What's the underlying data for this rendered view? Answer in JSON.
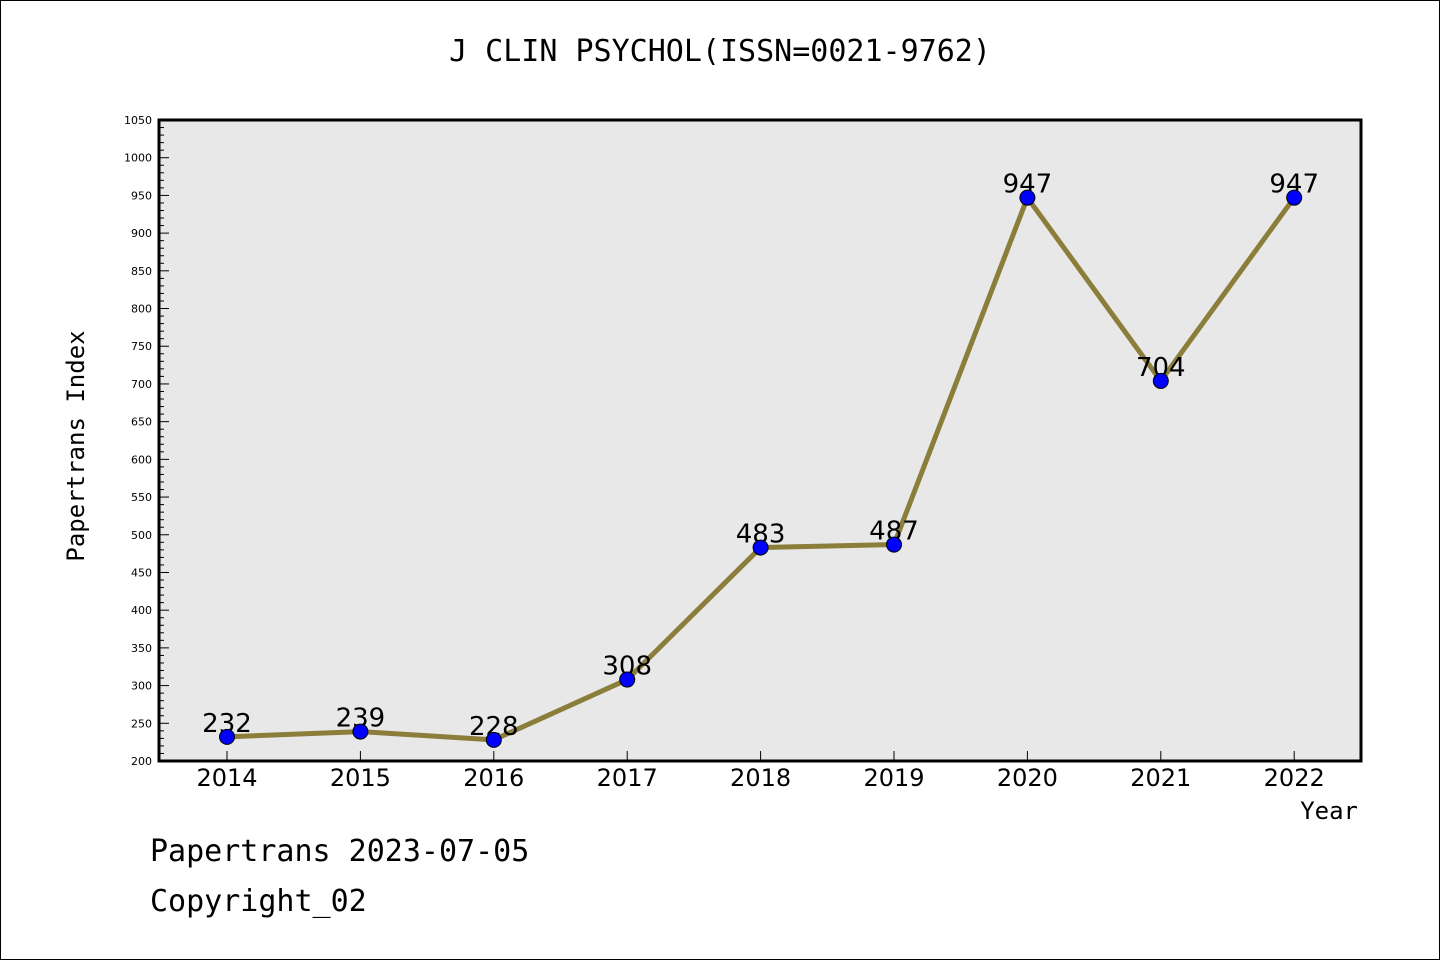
{
  "chart_data": {
    "type": "line",
    "title": "J CLIN PSYCHOL(ISSN=0021-9762)",
    "xlabel": "Year",
    "ylabel": "Papertrans Index",
    "categories": [
      "2014",
      "2015",
      "2016",
      "2017",
      "2018",
      "2019",
      "2020",
      "2021",
      "2022"
    ],
    "values": [
      232,
      239,
      228,
      308,
      483,
      487,
      947,
      704,
      947
    ],
    "ylim": [
      200,
      1050
    ],
    "yticks": [
      200,
      250,
      300,
      350,
      400,
      450,
      500,
      550,
      600,
      650,
      700,
      750,
      800,
      850,
      900,
      950,
      1000,
      1050
    ],
    "grid": false,
    "colors": {
      "line": "#8b7d3a",
      "marker": "#0000ff",
      "plot_background": "#e8e8e8"
    }
  },
  "footer": {
    "line1": "Papertrans 2023-07-05",
    "line2": "Copyright_02"
  }
}
